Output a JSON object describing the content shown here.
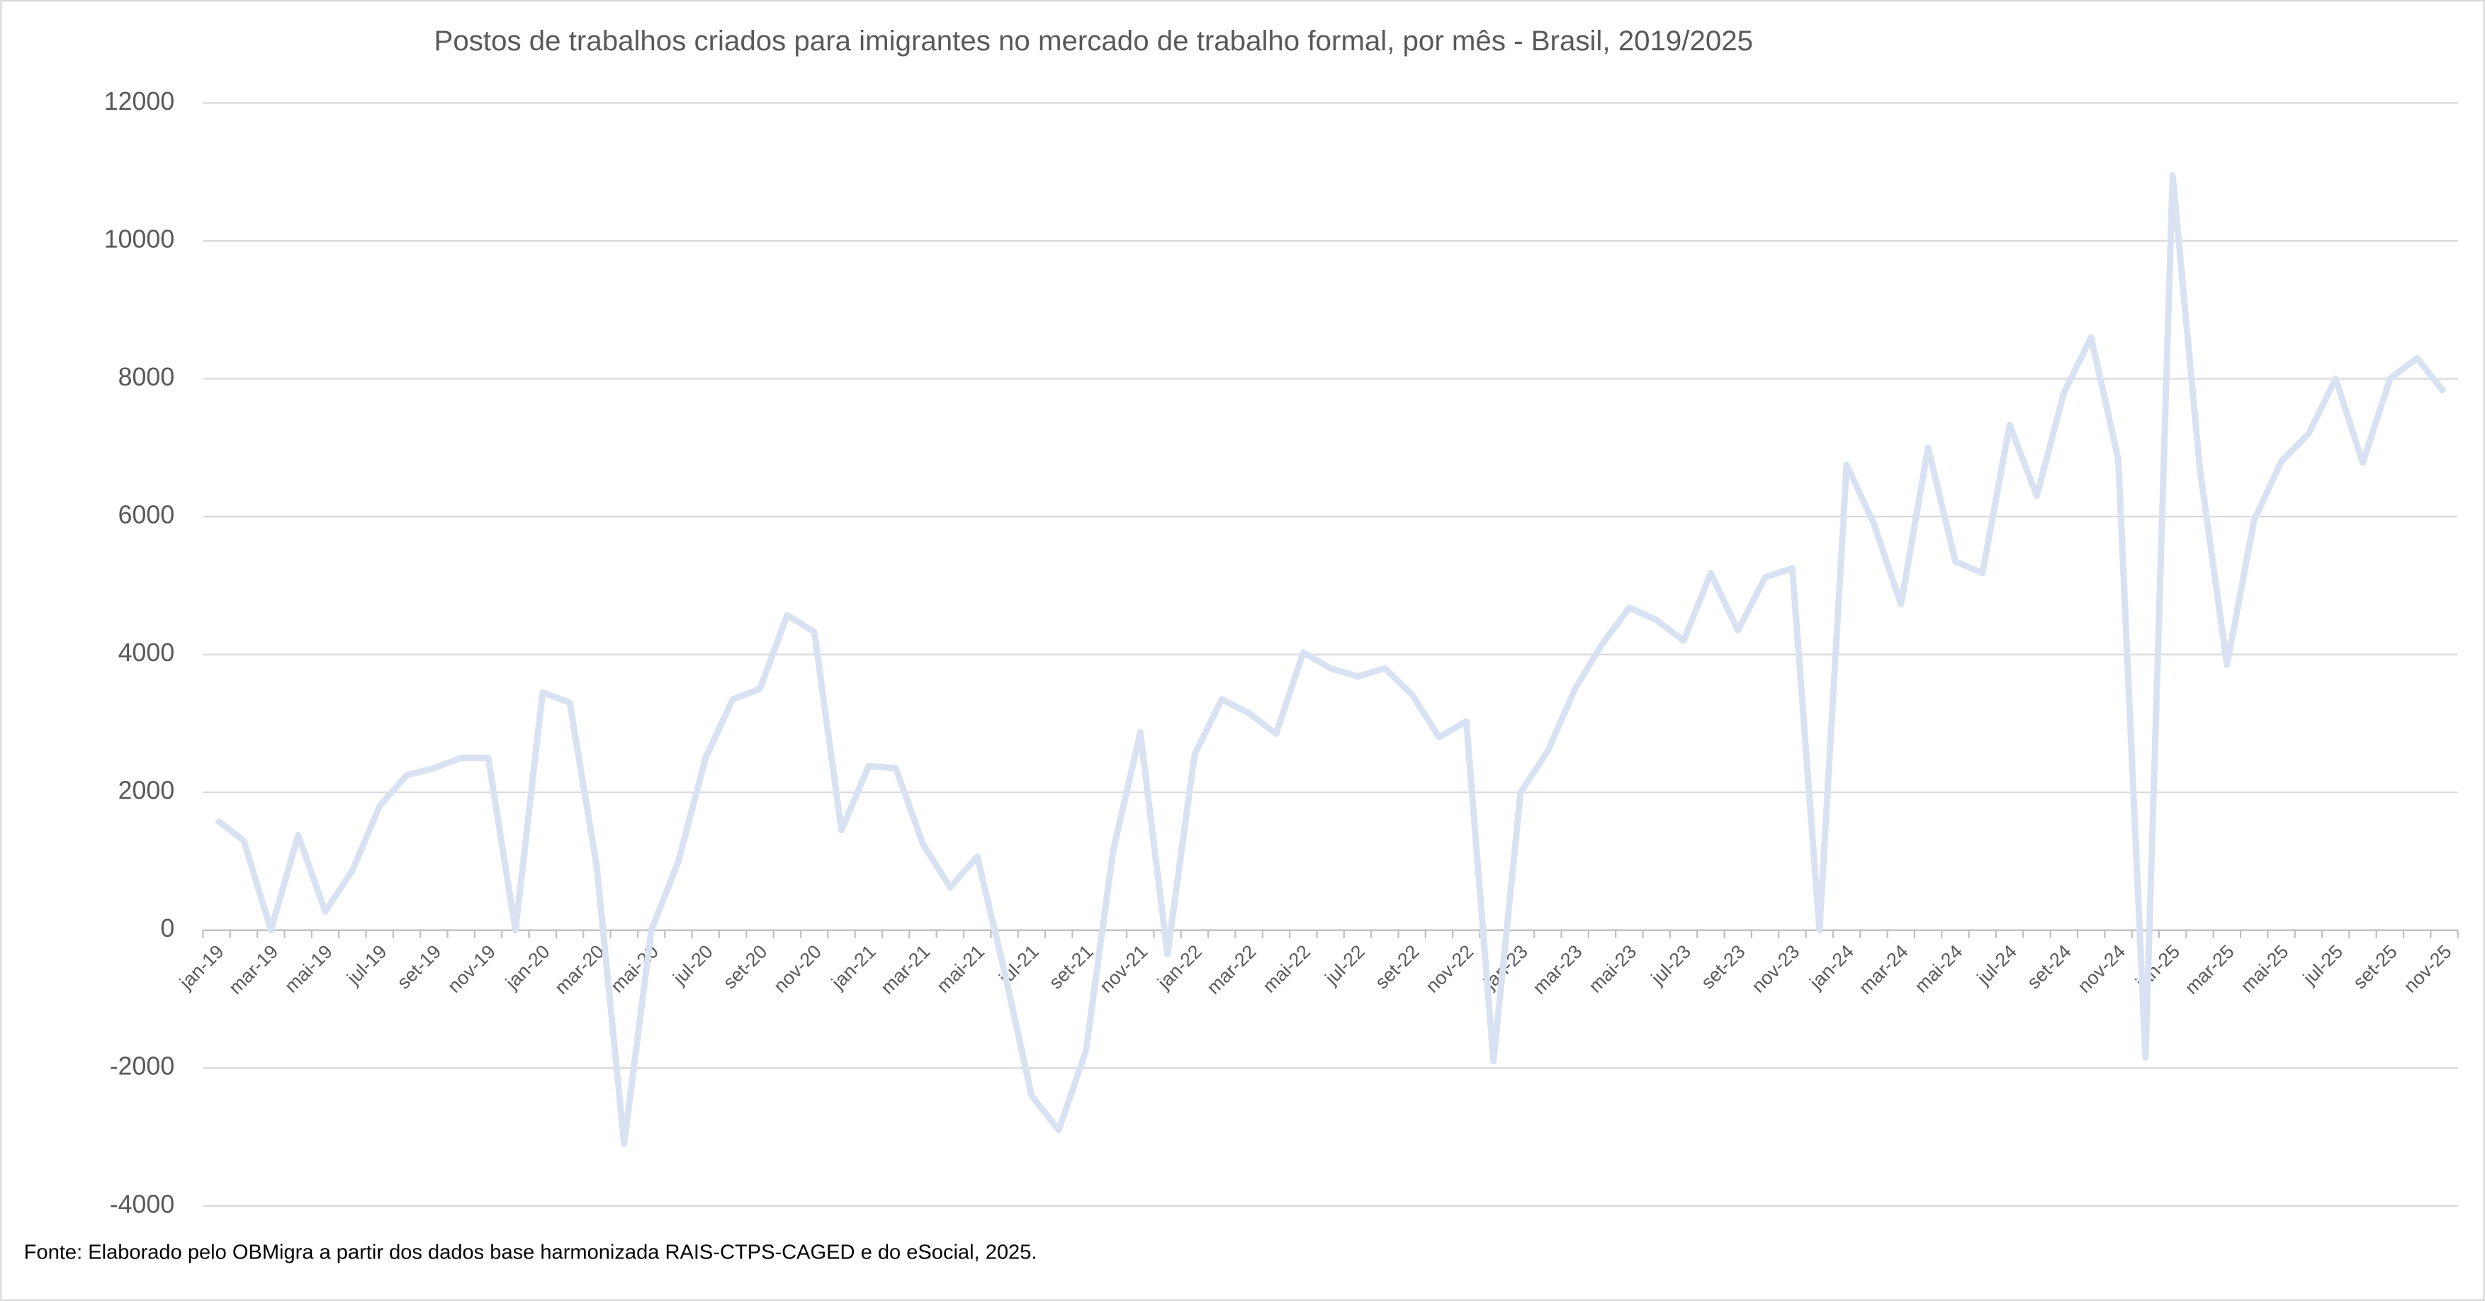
{
  "chart_data": {
    "type": "line",
    "title": "Postos de trabalhos criados para imigrantes no mercado de trabalho formal, por mês - Brasil, 2019/2025",
    "source": "Fonte: Elaborado pelo OBMigra a partir dos dados base harmonizada RAIS-CTPS-CAGED e do eSocial, 2025.",
    "categories": [
      "jan-19",
      null,
      "mar-19",
      null,
      "mai-19",
      null,
      "jul-19",
      null,
      "set-19",
      null,
      "nov-19",
      null,
      "jan-20",
      null,
      "mar-20",
      null,
      "mai-20",
      null,
      "jul-20",
      null,
      "set-20",
      null,
      "nov-20",
      null,
      "jan-21",
      null,
      "mar-21",
      null,
      "mai-21",
      null,
      "jul-21",
      null,
      "set-21",
      null,
      "nov-21",
      null,
      "jan-22",
      null,
      "mar-22",
      null,
      "mai-22",
      null,
      "jul-22",
      null,
      "set-22",
      null,
      "nov-22",
      null,
      "jan-23",
      null,
      "mar-23",
      null,
      "mai-23",
      null,
      "jul-23",
      null,
      "set-23",
      null,
      "nov-23",
      null,
      "jan-24",
      null,
      "mar-24",
      null,
      "mai-24",
      null,
      "jul-24",
      null,
      "set-24",
      null,
      "nov-24",
      null,
      "jan-25",
      null,
      "mar-25",
      null,
      "mai-25",
      null,
      "jul-25",
      null,
      "set-25",
      null,
      "nov-25"
    ],
    "series": [
      {
        "color": "#d9e2f3",
        "values": [
          1600,
          1300,
          0,
          1380,
          270,
          870,
          1800,
          2250,
          2350,
          2500,
          2500,
          0,
          3450,
          3300,
          900,
          -3100,
          0,
          1000,
          2500,
          3350,
          3500,
          4570,
          4330,
          1450,
          2380,
          2350,
          1250,
          620,
          1070,
          -600,
          -2400,
          -2900,
          -1750,
          1150,
          2870,
          -350,
          2550,
          3350,
          3150,
          2850,
          4030,
          3800,
          3680,
          3800,
          3420,
          2800,
          3030,
          -1900,
          2000,
          2600,
          3500,
          4150,
          4680,
          4500,
          4200,
          5180,
          4350,
          5120,
          5250,
          0,
          6750,
          5900,
          4730,
          7000,
          5350,
          5180,
          7330,
          6300,
          7800,
          8600,
          6830,
          -1850,
          10950,
          6700,
          3850,
          5950,
          6800,
          7200,
          8000,
          6780,
          8000,
          8300,
          7800
        ]
      }
    ],
    "ylim": [
      -4000,
      12000
    ],
    "yticks": [
      -4000,
      -2000,
      0,
      2000,
      4000,
      6000,
      8000,
      10000,
      12000
    ],
    "grid": true
  }
}
